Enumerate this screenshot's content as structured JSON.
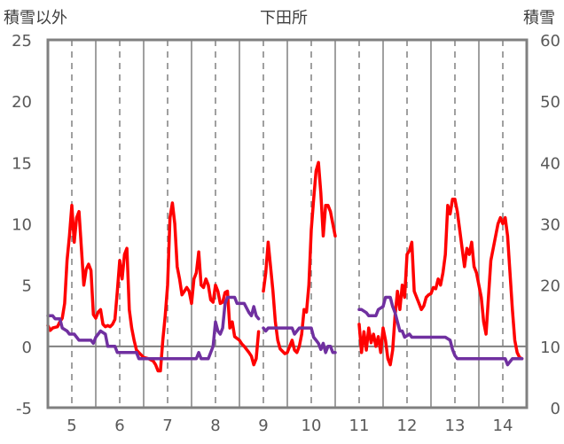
{
  "chart_data": {
    "type": "line",
    "title": "下田所",
    "left_axis_title": "積雪以外",
    "right_axis_title": "積雪",
    "y_left": {
      "min": -5,
      "max": 25,
      "ticks": [
        -5,
        0,
        5,
        10,
        15,
        20,
        25
      ]
    },
    "y_right": {
      "min": 0,
      "max": 60,
      "ticks": [
        0,
        10,
        20,
        30,
        40,
        50,
        60
      ]
    },
    "x": {
      "min": 4.5,
      "max": 14.5,
      "ticks": [
        5,
        6,
        7,
        8,
        9,
        10,
        11,
        12,
        13,
        14
      ]
    },
    "gridlines": {
      "dashed_at": [
        5,
        6,
        7,
        8,
        9,
        10,
        11,
        12,
        13,
        14
      ],
      "solid_at": [
        4.5,
        5.5,
        6.5,
        7.5,
        8.5,
        9.5,
        10.5,
        11.5,
        12.5,
        13.5,
        14.5
      ]
    },
    "zero_line": true,
    "series": [
      {
        "axis": "left",
        "color": "#ff0000",
        "segments": [
          [
            [
              4.5,
              1.7
            ],
            [
              4.55,
              1.3
            ],
            [
              4.6,
              1.5
            ],
            [
              4.7,
              1.6
            ],
            [
              4.75,
              2.0
            ],
            [
              4.8,
              2.3
            ],
            [
              4.85,
              3.5
            ],
            [
              4.9,
              7.0
            ],
            [
              4.95,
              9.0
            ],
            [
              5.0,
              11.5
            ],
            [
              5.05,
              8.5
            ],
            [
              5.1,
              10.5
            ],
            [
              5.15,
              11.0
            ],
            [
              5.2,
              8.0
            ],
            [
              5.25,
              5.0
            ],
            [
              5.3,
              6.3
            ],
            [
              5.35,
              6.7
            ],
            [
              5.4,
              6.2
            ],
            [
              5.45,
              2.6
            ],
            [
              5.5,
              2.3
            ],
            [
              5.55,
              2.8
            ],
            [
              5.6,
              3.0
            ],
            [
              5.65,
              1.8
            ],
            [
              5.7,
              1.6
            ],
            [
              5.75,
              1.7
            ],
            [
              5.8,
              1.6
            ],
            [
              5.85,
              1.8
            ],
            [
              5.9,
              2.2
            ],
            [
              5.95,
              4.5
            ],
            [
              6.0,
              7.0
            ],
            [
              6.05,
              5.5
            ],
            [
              6.1,
              7.5
            ],
            [
              6.15,
              8.0
            ],
            [
              6.2,
              3.0
            ],
            [
              6.25,
              1.5
            ],
            [
              6.3,
              0.5
            ],
            [
              6.35,
              -0.3
            ],
            [
              6.4,
              -0.5
            ],
            [
              6.5,
              -0.9
            ],
            [
              6.6,
              -1.0
            ],
            [
              6.7,
              -1.2
            ],
            [
              6.75,
              -1.5
            ],
            [
              6.8,
              -2.0
            ],
            [
              6.85,
              -2.0
            ],
            [
              6.9,
              0.5
            ],
            [
              6.95,
              2.5
            ],
            [
              7.0,
              5.0
            ],
            [
              7.05,
              10.5
            ],
            [
              7.1,
              11.7
            ],
            [
              7.15,
              10.0
            ],
            [
              7.2,
              6.5
            ],
            [
              7.25,
              5.5
            ],
            [
              7.3,
              4.2
            ],
            [
              7.35,
              4.5
            ],
            [
              7.4,
              4.8
            ],
            [
              7.45,
              4.5
            ],
            [
              7.5,
              3.5
            ],
            [
              7.55,
              5.5
            ],
            [
              7.6,
              6.0
            ],
            [
              7.65,
              7.7
            ],
            [
              7.7,
              5.0
            ],
            [
              7.75,
              4.8
            ],
            [
              7.8,
              5.5
            ],
            [
              7.85,
              5.0
            ],
            [
              7.9,
              3.8
            ],
            [
              7.95,
              3.6
            ],
            [
              8.0,
              5.0
            ],
            [
              8.05,
              4.5
            ],
            [
              8.1,
              3.5
            ],
            [
              8.15,
              3.6
            ],
            [
              8.2,
              4.4
            ],
            [
              8.25,
              4.5
            ],
            [
              8.3,
              1.5
            ],
            [
              8.35,
              2.0
            ],
            [
              8.4,
              0.8
            ],
            [
              8.5,
              0.5
            ],
            [
              8.55,
              0.2
            ],
            [
              8.6,
              0.0
            ],
            [
              8.7,
              -0.5
            ],
            [
              8.75,
              -0.8
            ],
            [
              8.8,
              -1.5
            ],
            [
              8.85,
              -1.0
            ],
            [
              8.9,
              1.2
            ]
          ],
          [
            [
              9.0,
              4.5
            ],
            [
              9.05,
              6.0
            ],
            [
              9.1,
              8.5
            ],
            [
              9.15,
              6.5
            ],
            [
              9.2,
              4.5
            ],
            [
              9.25,
              2.0
            ],
            [
              9.3,
              0.5
            ],
            [
              9.35,
              -0.2
            ],
            [
              9.45,
              -0.6
            ],
            [
              9.5,
              -0.5
            ],
            [
              9.55,
              0.0
            ],
            [
              9.6,
              0.5
            ],
            [
              9.65,
              -0.3
            ],
            [
              9.7,
              -0.5
            ],
            [
              9.75,
              0.0
            ],
            [
              9.8,
              1.0
            ],
            [
              9.85,
              3.0
            ],
            [
              9.9,
              2.8
            ],
            [
              9.95,
              5.0
            ],
            [
              10.0,
              9.5
            ],
            [
              10.05,
              12.0
            ],
            [
              10.1,
              14.3
            ],
            [
              10.15,
              15.0
            ],
            [
              10.2,
              12.5
            ],
            [
              10.25,
              9.0
            ],
            [
              10.3,
              11.5
            ],
            [
              10.35,
              11.5
            ],
            [
              10.4,
              11.0
            ],
            [
              10.45,
              10.0
            ],
            [
              10.5,
              9.0
            ]
          ],
          [
            [
              11.0,
              1.8
            ],
            [
              11.05,
              -0.5
            ],
            [
              11.1,
              1.2
            ],
            [
              11.15,
              -0.3
            ],
            [
              11.2,
              1.5
            ],
            [
              11.25,
              0.3
            ],
            [
              11.3,
              1.0
            ],
            [
              11.35,
              0.0
            ],
            [
              11.4,
              0.8
            ],
            [
              11.45,
              -0.5
            ],
            [
              11.5,
              1.5
            ],
            [
              11.55,
              0.5
            ],
            [
              11.6,
              -1.0
            ],
            [
              11.65,
              -1.5
            ],
            [
              11.7,
              -0.3
            ],
            [
              11.75,
              2.5
            ],
            [
              11.8,
              4.5
            ],
            [
              11.85,
              3.0
            ],
            [
              11.9,
              5.0
            ],
            [
              11.95,
              4.0
            ],
            [
              12.0,
              7.5
            ],
            [
              12.05,
              7.8
            ],
            [
              12.1,
              8.5
            ],
            [
              12.15,
              4.5
            ],
            [
              12.2,
              4.0
            ],
            [
              12.25,
              3.5
            ],
            [
              12.3,
              3.0
            ],
            [
              12.35,
              3.3
            ],
            [
              12.4,
              4.0
            ],
            [
              12.45,
              4.2
            ],
            [
              12.5,
              4.3
            ],
            [
              12.55,
              4.8
            ],
            [
              12.6,
              4.7
            ],
            [
              12.65,
              5.5
            ],
            [
              12.7,
              5.0
            ],
            [
              12.75,
              6.0
            ],
            [
              12.8,
              7.5
            ],
            [
              12.85,
              11.5
            ],
            [
              12.9,
              10.8
            ],
            [
              12.95,
              12.0
            ],
            [
              13.0,
              12.0
            ],
            [
              13.05,
              11.0
            ],
            [
              13.1,
              9.5
            ],
            [
              13.15,
              8.0
            ],
            [
              13.2,
              6.5
            ],
            [
              13.25,
              8.0
            ],
            [
              13.3,
              7.5
            ],
            [
              13.35,
              8.5
            ],
            [
              13.4,
              6.5
            ],
            [
              13.45,
              6.0
            ],
            [
              13.5,
              5.0
            ],
            [
              13.55,
              4.0
            ],
            [
              13.6,
              2.0
            ],
            [
              13.65,
              1.0
            ],
            [
              13.7,
              4.0
            ],
            [
              13.75,
              7.0
            ],
            [
              13.8,
              8.0
            ],
            [
              13.85,
              9.0
            ],
            [
              13.9,
              10.0
            ],
            [
              13.95,
              10.5
            ],
            [
              14.0,
              10.0
            ],
            [
              14.05,
              10.5
            ],
            [
              14.1,
              9.0
            ],
            [
              14.15,
              6.0
            ],
            [
              14.2,
              3.0
            ],
            [
              14.25,
              0.5
            ],
            [
              14.3,
              -0.5
            ],
            [
              14.35,
              -0.9
            ],
            [
              14.4,
              -1.0
            ]
          ]
        ]
      },
      {
        "axis": "right",
        "color": "#7030a0",
        "segments": [
          [
            [
              4.5,
              15.0
            ],
            [
              4.6,
              15.0
            ],
            [
              4.65,
              14.5
            ],
            [
              4.75,
              14.5
            ],
            [
              4.8,
              13.0
            ],
            [
              4.9,
              12.5
            ],
            [
              4.95,
              12.0
            ],
            [
              5.05,
              12.0
            ],
            [
              5.15,
              11.0
            ],
            [
              5.4,
              11.0
            ],
            [
              5.45,
              10.5
            ],
            [
              5.5,
              11.5
            ],
            [
              5.6,
              12.5
            ],
            [
              5.7,
              12.0
            ],
            [
              5.75,
              10.0
            ],
            [
              5.9,
              10.0
            ],
            [
              5.95,
              9.0
            ],
            [
              6.35,
              9.0
            ],
            [
              6.4,
              8.0
            ],
            [
              6.5,
              8.0
            ],
            [
              7.0,
              8.0
            ],
            [
              7.5,
              8.0
            ],
            [
              7.6,
              8.0
            ],
            [
              7.65,
              9.0
            ],
            [
              7.7,
              8.0
            ],
            [
              7.85,
              8.0
            ],
            [
              7.95,
              10.0
            ],
            [
              8.0,
              14.0
            ],
            [
              8.05,
              12.5
            ],
            [
              8.1,
              12.0
            ],
            [
              8.15,
              13.0
            ],
            [
              8.2,
              17.0
            ],
            [
              8.25,
              18.0
            ],
            [
              8.4,
              18.0
            ],
            [
              8.45,
              17.0
            ],
            [
              8.6,
              17.0
            ],
            [
              8.7,
              15.5
            ],
            [
              8.75,
              15.0
            ],
            [
              8.8,
              16.5
            ],
            [
              8.85,
              15.0
            ],
            [
              8.9,
              14.5
            ]
          ],
          [
            [
              9.0,
              13.0
            ],
            [
              9.05,
              12.5
            ],
            [
              9.1,
              13.0
            ],
            [
              9.6,
              13.0
            ],
            [
              9.65,
              12.0
            ],
            [
              9.75,
              13.0
            ],
            [
              9.85,
              13.0
            ],
            [
              10.0,
              13.0
            ],
            [
              10.05,
              11.5
            ],
            [
              10.1,
              11.0
            ],
            [
              10.15,
              10.5
            ],
            [
              10.2,
              9.5
            ],
            [
              10.25,
              10.5
            ],
            [
              10.3,
              9.0
            ],
            [
              10.35,
              10.0
            ],
            [
              10.4,
              10.0
            ],
            [
              10.45,
              9.0
            ],
            [
              10.5,
              9.0
            ]
          ],
          [
            [
              11.0,
              16.0
            ],
            [
              11.05,
              16.0
            ],
            [
              11.15,
              15.5
            ],
            [
              11.2,
              15.0
            ],
            [
              11.35,
              15.0
            ],
            [
              11.4,
              16.0
            ],
            [
              11.5,
              16.5
            ],
            [
              11.55,
              18.0
            ],
            [
              11.65,
              18.0
            ],
            [
              11.7,
              16.5
            ],
            [
              11.75,
              15.5
            ],
            [
              11.8,
              14.0
            ],
            [
              11.85,
              12.5
            ],
            [
              11.9,
              12.5
            ],
            [
              11.95,
              11.5
            ],
            [
              12.05,
              12.0
            ],
            [
              12.1,
              11.5
            ],
            [
              12.5,
              11.5
            ],
            [
              12.8,
              11.5
            ],
            [
              12.9,
              11.0
            ],
            [
              12.95,
              9.5
            ],
            [
              13.0,
              8.5
            ],
            [
              13.05,
              8.0
            ],
            [
              14.0,
              8.0
            ],
            [
              14.05,
              8.0
            ],
            [
              14.1,
              7.0
            ],
            [
              14.2,
              8.0
            ],
            [
              14.4,
              8.0
            ]
          ]
        ]
      }
    ]
  }
}
